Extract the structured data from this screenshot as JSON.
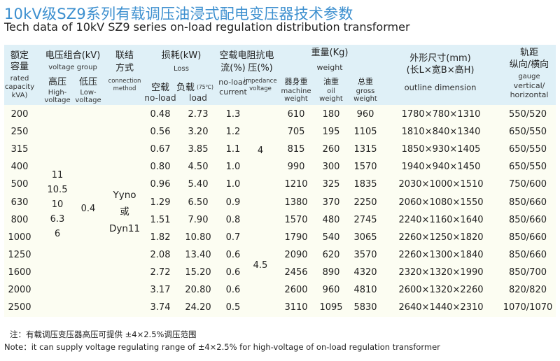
{
  "title_cn": "10kV级SZ9系列有载调压油浸式配电变压器技术参数",
  "title_en": "Tech data of  10kV SZ9 series on-load regulation distribution transformer",
  "header": {
    "capacity": {
      "cn1": "额定",
      "cn2": "容量",
      "en1": "rated",
      "en2": "capacity",
      "en3": "kVA)"
    },
    "voltage_group": {
      "cn": "电压组合(kV)",
      "en": "voltage group"
    },
    "high": {
      "cn": "高压",
      "en1": "High-",
      "en2": "voltage"
    },
    "low": {
      "cn": "低压",
      "en1": "Low-",
      "en2": "voltage"
    },
    "connection": {
      "cn1": "联结",
      "cn2": "方式",
      "en1": "connection",
      "en2": "method"
    },
    "loss": {
      "cn": "损耗(kW)",
      "en": "Loss"
    },
    "noload_loss": {
      "cn": "空载",
      "en": "no-load"
    },
    "load_loss": {
      "cn": "负载",
      "sup": "(75℃)",
      "en": "load"
    },
    "noload_current": {
      "cn": "空载电",
      "cn2": "流(%)",
      "en1": "no-load",
      "en2": "current"
    },
    "impedance": {
      "cn": "阻抗电",
      "cn2": "压(%)",
      "en1": "impedance",
      "en2": "voltage"
    },
    "weight": {
      "cn": "重量(Kg)",
      "en": "weight"
    },
    "machine_weight": {
      "cn": "器身重",
      "en1": "machine",
      "en2": "weight"
    },
    "oil_weight": {
      "cn": "油重",
      "en1": "oil",
      "en2": "weight"
    },
    "gross_weight": {
      "cn": "总重",
      "en1": "gross",
      "en2": "weight"
    },
    "outline": {
      "cn1": "外形尺寸(mm)",
      "cn2": "(长L×宽B×高H)",
      "en": "outline dimension"
    },
    "gauge": {
      "cn1": "轨距",
      "cn2": "纵向/横向",
      "en1": "gauge",
      "en2": "vertical/",
      "en3": "horizontal"
    }
  },
  "merged": {
    "high_voltage": [
      "11",
      "10.5",
      "10",
      "6.3",
      "6"
    ],
    "low_voltage": "0.4",
    "connection": [
      "Yyno",
      "或",
      "Dyn11"
    ],
    "impedance_a": "4",
    "impedance_b": "4.5"
  },
  "rows": [
    {
      "capacity": "200",
      "noload": "0.48",
      "load": "2.73",
      "current": "1.3",
      "machine": "610",
      "oil": "180",
      "gross": "960",
      "dims": "1780×780×1310",
      "gauge": "550/520"
    },
    {
      "capacity": "250",
      "noload": "0.56",
      "load": "3.20",
      "current": "1.2",
      "machine": "705",
      "oil": "195",
      "gross": "1105",
      "dims": "1810×840×1340",
      "gauge": "650/550"
    },
    {
      "capacity": "315",
      "noload": "0.67",
      "load": "3.85",
      "current": "1.1",
      "machine": "815",
      "oil": "260",
      "gross": "1315",
      "dims": "1850×930×1405",
      "gauge": "650/550"
    },
    {
      "capacity": "400",
      "noload": "0.80",
      "load": "4.50",
      "current": "1.0",
      "machine": "990",
      "oil": "300",
      "gross": "1570",
      "dims": "1940×940×1450",
      "gauge": "650/550"
    },
    {
      "capacity": "500",
      "noload": "0.96",
      "load": "5.40",
      "current": "1.0",
      "machine": "1210",
      "oil": "325",
      "gross": "1835",
      "dims": "2030×1000×1510",
      "gauge": "750/600"
    },
    {
      "capacity": "630",
      "noload": "1.29",
      "load": "6.50",
      "current": "0.9",
      "machine": "1380",
      "oil": "370",
      "gross": "2250",
      "dims": "2060×1080×1550",
      "gauge": "850/660"
    },
    {
      "capacity": "800",
      "noload": "1.51",
      "load": "7.90",
      "current": "0.8",
      "machine": "1570",
      "oil": "480",
      "gross": "2745",
      "dims": "2240×1160×1640",
      "gauge": "850/660"
    },
    {
      "capacity": "1000",
      "noload": "1.82",
      "load": "10.80",
      "current": "0.7",
      "machine": "1790",
      "oil": "540",
      "gross": "3065",
      "dims": "2260×1250×1820",
      "gauge": "850/660"
    },
    {
      "capacity": "1250",
      "noload": "2.08",
      "load": "13.40",
      "current": "0.6",
      "machine": "2090",
      "oil": "620",
      "gross": "3570",
      "dims": "2260×1300×1840",
      "gauge": "850/660"
    },
    {
      "capacity": "1600",
      "noload": "2.72",
      "load": "15.20",
      "current": "0.6",
      "machine": "2456",
      "oil": "890",
      "gross": "4320",
      "dims": "2320×1320×1990",
      "gauge": "850/700"
    },
    {
      "capacity": "2000",
      "noload": "3.17",
      "load": "20.80",
      "current": "0.6",
      "machine": "2600",
      "oil": "960",
      "gross": "4810",
      "dims": "2600×1320×2260",
      "gauge": "820/820"
    },
    {
      "capacity": "2500",
      "noload": "3.74",
      "load": "24.20",
      "current": "0.5",
      "machine": "3110",
      "oil": "1095",
      "gross": "5830",
      "dims": "2640×1440×2310",
      "gauge": "1070/1070"
    }
  ],
  "note_cn": "注：有载调压变压器高压可提供 ±4×2.5%调压范围",
  "note_en": "Note：it can supply voltage regulating range of  ±4×2.5% for high-voltage of on-load regulation transformer"
}
